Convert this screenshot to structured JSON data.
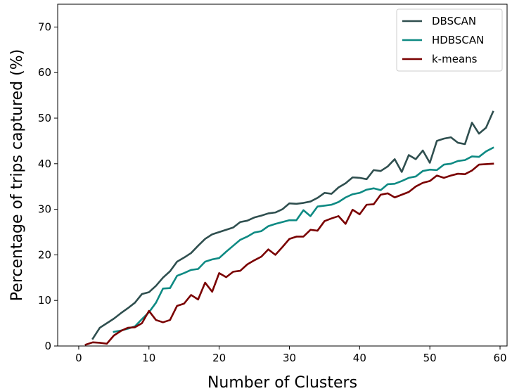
{
  "chart_data": {
    "type": "line",
    "xlabel": "Number of Clusters",
    "ylabel": "Percentage of trips captured (%)",
    "xlim": [
      -3,
      61
    ],
    "ylim": [
      0,
      75
    ],
    "xticks": [
      0,
      10,
      20,
      30,
      40,
      50,
      60
    ],
    "yticks": [
      0,
      10,
      20,
      30,
      40,
      50,
      60,
      70
    ],
    "grid": false,
    "legend_position": "top-right",
    "series": [
      {
        "name": "DBSCAN",
        "color": "#2f4f4f",
        "x": [
          2,
          3,
          4,
          5,
          6,
          7,
          8,
          9,
          10,
          11,
          12,
          13,
          14,
          15,
          16,
          17,
          18,
          19,
          20,
          21,
          22,
          23,
          24,
          25,
          26,
          27,
          28,
          29,
          30,
          31,
          32,
          33,
          34,
          35,
          36,
          37,
          38,
          39,
          40,
          41,
          42,
          43,
          44,
          45,
          46,
          47,
          48,
          49,
          50,
          51,
          52,
          53,
          54,
          55,
          56,
          57,
          58,
          59
        ],
        "y": [
          1.6,
          4.0,
          5.0,
          6.0,
          7.2,
          8.3,
          9.5,
          11.4,
          11.8,
          13.2,
          15.0,
          16.4,
          18.5,
          19.4,
          20.4,
          22.0,
          23.5,
          24.5,
          25.0,
          25.5,
          26.0,
          27.2,
          27.5,
          28.2,
          28.6,
          29.1,
          29.3,
          30.0,
          31.3,
          31.2,
          31.4,
          31.7,
          32.5,
          33.6,
          33.4,
          34.8,
          35.7,
          37.0,
          36.9,
          36.6,
          38.6,
          38.4,
          39.4,
          41.0,
          38.2,
          41.9,
          41.0,
          42.9,
          40.2,
          45.0,
          45.5,
          45.8,
          44.6,
          44.3,
          49.0,
          46.6,
          47.9,
          51.4
        ]
      },
      {
        "name": "HDBSCAN",
        "color": "#0e8a83",
        "x": [
          5,
          6,
          7,
          8,
          9,
          10,
          11,
          12,
          13,
          14,
          15,
          16,
          17,
          18,
          19,
          20,
          21,
          22,
          23,
          24,
          25,
          26,
          27,
          28,
          29,
          30,
          31,
          32,
          33,
          34,
          35,
          36,
          37,
          38,
          39,
          40,
          41,
          42,
          43,
          44,
          45,
          46,
          47,
          48,
          49,
          50,
          51,
          52,
          53,
          54,
          55,
          56,
          57,
          58,
          59
        ],
        "y": [
          3.1,
          3.4,
          3.8,
          4.3,
          5.9,
          7.4,
          9.5,
          12.6,
          12.7,
          15.4,
          16.0,
          16.7,
          16.9,
          18.5,
          19.0,
          19.3,
          20.7,
          22.0,
          23.3,
          24.0,
          24.9,
          25.2,
          26.3,
          26.8,
          27.2,
          27.6,
          27.6,
          29.8,
          28.5,
          30.6,
          30.8,
          31.0,
          31.6,
          32.6,
          33.3,
          33.6,
          34.3,
          34.6,
          34.2,
          35.5,
          35.6,
          36.2,
          36.9,
          37.2,
          38.4,
          38.7,
          38.6,
          39.8,
          40.0,
          40.6,
          40.8,
          41.6,
          41.5,
          42.7,
          43.5
        ]
      },
      {
        "name": "k-means",
        "color": "#7a0000",
        "x": [
          1,
          2,
          3,
          4,
          5,
          6,
          7,
          8,
          9,
          10,
          11,
          12,
          13,
          14,
          15,
          16,
          17,
          18,
          19,
          20,
          21,
          22,
          23,
          24,
          25,
          26,
          27,
          28,
          29,
          30,
          31,
          32,
          33,
          34,
          35,
          36,
          37,
          38,
          39,
          40,
          41,
          42,
          43,
          44,
          45,
          46,
          47,
          48,
          49,
          50,
          51,
          52,
          53,
          54,
          55,
          56,
          57,
          58,
          59
        ],
        "y": [
          0.3,
          0.8,
          0.7,
          0.5,
          2.3,
          3.3,
          4.0,
          4.1,
          5.0,
          7.7,
          5.7,
          5.2,
          5.7,
          8.8,
          9.3,
          11.2,
          10.2,
          13.9,
          11.9,
          16.0,
          15.1,
          16.3,
          16.5,
          17.9,
          18.8,
          19.6,
          21.2,
          20.0,
          21.7,
          23.5,
          24.0,
          24.0,
          25.5,
          25.3,
          27.4,
          28.0,
          28.5,
          26.8,
          29.9,
          28.9,
          31.0,
          31.1,
          33.2,
          33.5,
          32.6,
          33.2,
          33.8,
          35.0,
          35.8,
          36.2,
          37.4,
          36.9,
          37.4,
          37.8,
          37.7,
          38.5,
          39.8,
          39.9,
          40.0
        ]
      }
    ]
  }
}
